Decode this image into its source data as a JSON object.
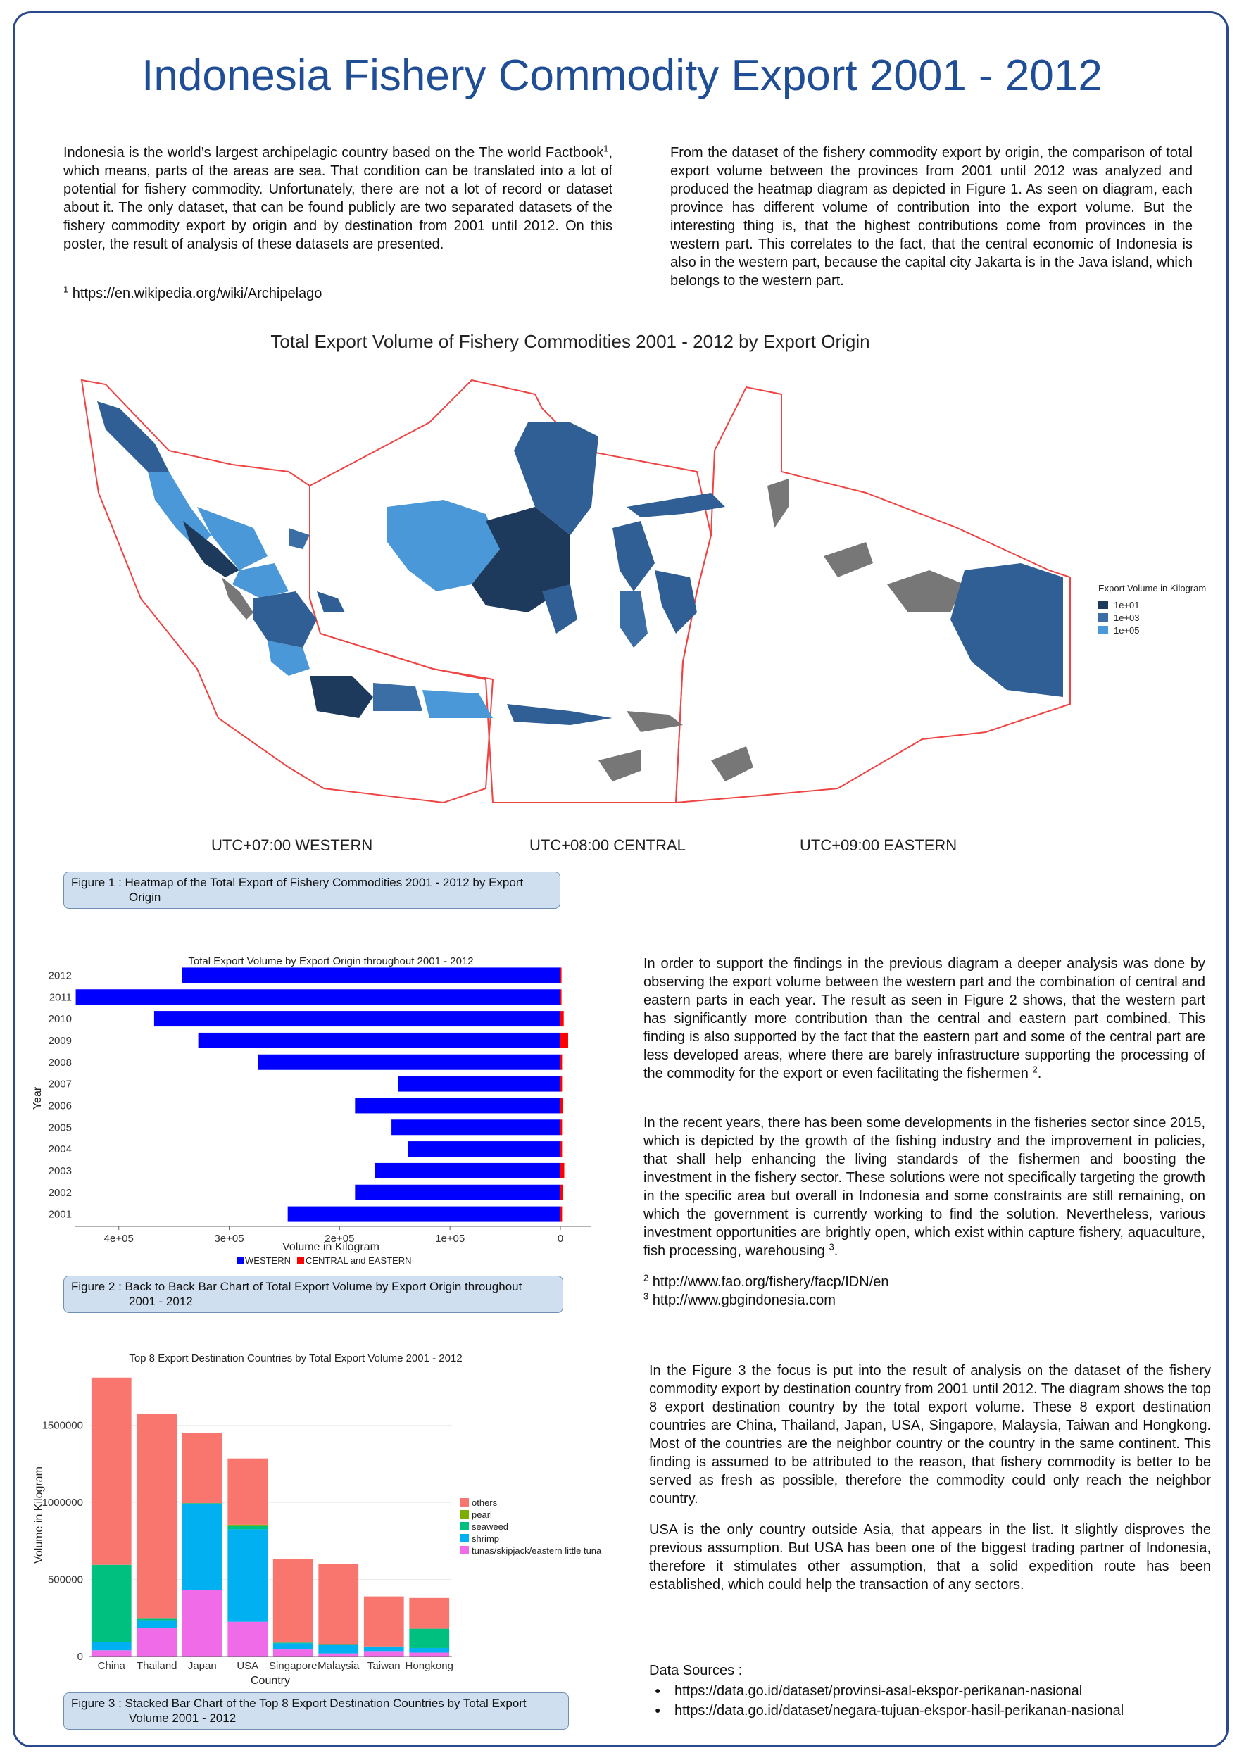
{
  "poster": {
    "title": "Indonesia Fishery Commodity Export 2001 - 2012",
    "intro_left": {
      "p1": "Indonesia is the world’s largest archipelagic country based on the The world Factbook",
      "p1_sup": "1",
      "p2": ", which means, parts of the areas are sea. That condition can be translated into a lot of potential for fishery commodity. Unfortunately, there are not a lot of record or dataset about it. The only dataset, that can be found publicly are two separated datasets of the fishery commodity export by origin and by destination from 2001 until 2012. On this poster, the result of analysis of these datasets are presented.",
      "footnote_num": "1",
      "footnote": " https://en.wikipedia.org/wiki/Archipelago"
    },
    "intro_right": "From the dataset of the fishery commodity export by origin, the comparison of total export volume between the provinces from 2001 until 2012 was analyzed and produced the heatmap diagram as depicted in Figure 1. As seen on diagram, each province has different volume of contribution into the export volume. But the interesting thing is, that the highest contributions come from provinces in the western part. This correlates to the fact, that the central economic of Indonesia is also in the western part, because the capital city Jakarta is in the Java island, which belongs to the western part.",
    "fig1": {
      "title": "Total Export Volume of Fishery Commodities 2001 - 2012 by Export Origin",
      "legend_title": "Export Volume in Kilogram",
      "legend": [
        {
          "label": "1e+01",
          "color": "#1d3a5c"
        },
        {
          "label": "1e+03",
          "color": "#3a6ea5"
        },
        {
          "label": "1e+05",
          "color": "#4a98d8"
        }
      ],
      "zones": [
        "UTC+07:00 WESTERN",
        "UTC+08:00 CENTRAL",
        "UTC+09:00 EASTERN"
      ],
      "caption_l1": "Figure 1 : Heatmap of the Total Export of Fishery Commodities 2001 - 2012 by Export",
      "caption_l2": "Origin"
    },
    "fig2_text": {
      "p1": "In order to support the findings in the previous diagram a deeper analysis was done by observing the export volume between the western part and the combination of central and eastern parts in each year. The result as seen in Figure 2 shows, that the western part has significantly more contribution than the central and eastern part combined. This finding is also supported by the fact that the eastern part and some of the central part are less developed areas, where there are barely infrastructure supporting the processing of the commodity for the export or even facilitating the fishermen ",
      "p1_sup": "2",
      "p1_end": ".",
      "p2": "In the recent years, there has been some developments in the fisheries sector since 2015, which is depicted by the growth of the fishing industry and the improvement in policies, that shall help enhancing the living standards of the fishermen and boosting the investment in the fishery sector. These solutions were not specifically targeting the growth in the specific area but overall in Indonesia and some constraints are still remaining, on which the government is currently working to find the solution. Nevertheless, various investment opportunities are brightly open, which exist within capture fishery, aquaculture, fish processing, warehousing ",
      "p2_sup": "3",
      "p2_end": ".",
      "fn2_num": "2",
      "fn2": " http://www.fao.org/fishery/facp/IDN/en",
      "fn3_num": "3",
      "fn3": " http://www.gbgindonesia.com"
    },
    "fig2_caption_l1": "Figure 2 : Back to Back Bar Chart of Total Export Volume by Export Origin throughout",
    "fig2_caption_l2": "2001 - 2012",
    "fig3_text": {
      "p1": "In the Figure 3 the focus is put into the result of analysis on the dataset of the fishery commodity export by destination country from 2001 until 2012. The diagram shows the top 8 export destination country by the total export volume. These 8 export destination countries are China, Thailand, Japan, USA, Singapore, Malaysia, Taiwan and Hongkong. Most of the countries are the neighbor country or the country in the same continent. This finding is assumed to be attributed to the reason, that fishery commodity is better to be served as fresh as possible, therefore the commodity could only reach the neighbor country.",
      "p2": "USA is the only country outside Asia, that appears in the list. It slightly disproves the previous assumption. But USA has been one of the biggest trading partner of Indonesia, therefore it stimulates other assumption, that a solid expedition route has been established, which could help the transaction of any sectors."
    },
    "fig3_caption_l1": "Figure 3 : Stacked Bar Chart of the Top 8 Export Destination Countries by Total Export",
    "fig3_caption_l2": "Volume 2001 - 2012",
    "data_sources": {
      "title": "Data Sources :",
      "items": [
        "https://data.go.id/dataset/provinsi-asal-ekspor-perikanan-nasional",
        "https://data.go.id/dataset/negara-tujuan-ekspor-hasil-perikanan-nasional"
      ]
    }
  },
  "chart_data": [
    {
      "type": "bar",
      "orientation": "horizontal",
      "title": "Total Export Volume by Export Origin throughout 2001 - 2012",
      "xlabel": "Volume in Kilogram",
      "ylabel": "Year",
      "xlim": [
        440000,
        -5000
      ],
      "x_ticks": [
        {
          "value": 400000,
          "label": "4e+05"
        },
        {
          "value": 300000,
          "label": "3e+05"
        },
        {
          "value": 200000,
          "label": "2e+05"
        },
        {
          "value": 100000,
          "label": "1e+05"
        },
        {
          "value": 0,
          "label": "0"
        }
      ],
      "categories": [
        "2001",
        "2002",
        "2003",
        "2004",
        "2005",
        "2006",
        "2007",
        "2008",
        "2009",
        "2010",
        "2011",
        "2012"
      ],
      "series": [
        {
          "name": "WESTERN",
          "color": "#0000ff",
          "values": [
            247000,
            186000,
            168000,
            138000,
            153000,
            186000,
            147000,
            274000,
            328000,
            368000,
            439000,
            343000
          ]
        },
        {
          "name": "CENTRAL and EASTERN",
          "color": "#ff0000",
          "values": [
            1500,
            2000,
            3500,
            1500,
            1500,
            2500,
            1500,
            1500,
            7000,
            3000,
            1000,
            1000
          ]
        }
      ],
      "legend_position": "bottom"
    },
    {
      "type": "bar",
      "stacked": true,
      "title": "Top 8 Export Destination Countries by Total Export Volume 2001 - 2012",
      "xlabel": "Country",
      "ylabel": "Volume in Kilogram",
      "ylim": [
        0,
        1850000
      ],
      "y_ticks": [
        0,
        500000,
        1000000,
        1500000
      ],
      "categories": [
        "China",
        "Thailand",
        "Japan",
        "USA",
        "Singapore",
        "Malaysia",
        "Taiwan",
        "Hongkong"
      ],
      "series": [
        {
          "name": "tunas/skipjack/eastern little tuna",
          "color": "#f06be8",
          "values": [
            40000,
            185000,
            430000,
            225000,
            45000,
            20000,
            35000,
            25000
          ]
        },
        {
          "name": "shrimp",
          "color": "#00b0f0",
          "values": [
            55000,
            50000,
            560000,
            600000,
            40000,
            55000,
            25000,
            30000
          ]
        },
        {
          "name": "seaweed",
          "color": "#00c07f",
          "values": [
            500000,
            10000,
            5000,
            25000,
            5000,
            5000,
            5000,
            125000
          ]
        },
        {
          "name": "pearl",
          "color": "#7cae00",
          "values": [
            0,
            0,
            0,
            5000,
            0,
            0,
            0,
            0
          ]
        },
        {
          "name": "others",
          "color": "#f8766d",
          "values": [
            1215000,
            1330000,
            455000,
            430000,
            545000,
            520000,
            325000,
            200000
          ]
        }
      ],
      "legend_order": [
        "others",
        "pearl",
        "seaweed",
        "shrimp",
        "tunas/skipjack/eastern little tuna"
      ],
      "legend_position": "right"
    }
  ]
}
